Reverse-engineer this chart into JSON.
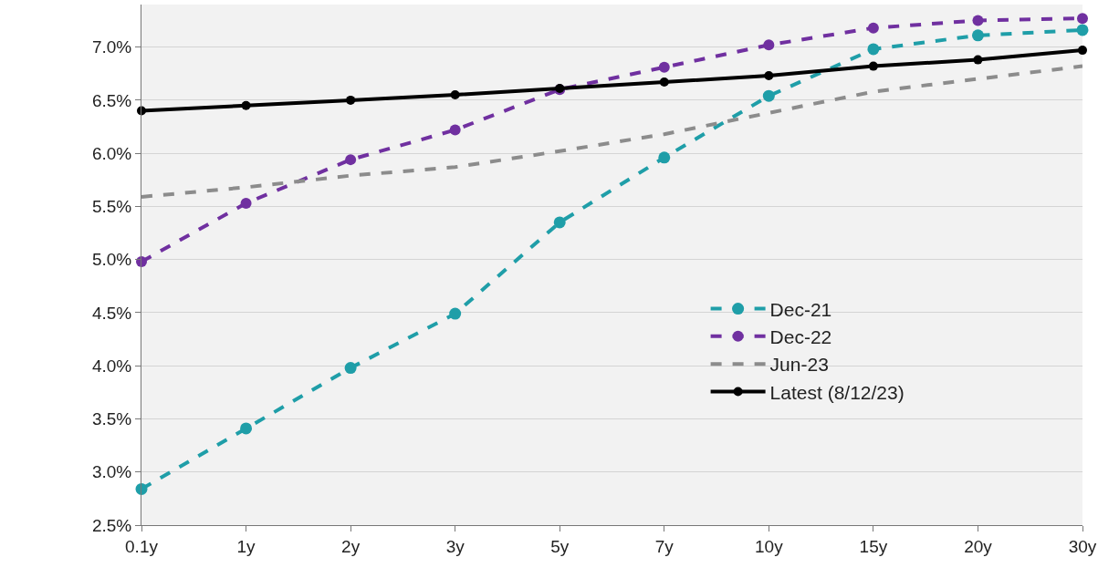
{
  "chart_data": {
    "type": "line",
    "categories": [
      "0.1y",
      "1y",
      "2y",
      "3y",
      "5y",
      "7y",
      "10y",
      "15y",
      "20y",
      "30y"
    ],
    "series": [
      {
        "name": "Dec-21",
        "color": "#1f9ea8",
        "marker": "circle",
        "line_style": "dashed",
        "values": [
          2.84,
          3.41,
          3.98,
          4.49,
          5.35,
          5.96,
          6.54,
          6.98,
          7.11,
          7.16
        ]
      },
      {
        "name": "Dec-22",
        "color": "#7030a0",
        "marker": "circle",
        "line_style": "dashed",
        "values": [
          4.98,
          5.53,
          5.94,
          6.22,
          6.6,
          6.81,
          7.02,
          7.18,
          7.25,
          7.27
        ]
      },
      {
        "name": "Jun-23",
        "color": "#8c8c8c",
        "marker": "none",
        "line_style": "dashed",
        "values": [
          5.59,
          5.68,
          5.79,
          5.87,
          6.02,
          6.18,
          6.38,
          6.58,
          6.7,
          6.82
        ]
      },
      {
        "name": "Latest (8/12/23)",
        "color": "#000000",
        "marker": "circle",
        "line_style": "solid",
        "values": [
          6.4,
          6.45,
          6.5,
          6.55,
          6.61,
          6.67,
          6.73,
          6.82,
          6.88,
          6.97
        ]
      }
    ],
    "ylim": [
      2.5,
      7.4
    ],
    "yticks": [
      {
        "value": 2.5,
        "label": "2.5%"
      },
      {
        "value": 3,
        "label": "3.0%"
      },
      {
        "value": 3.5,
        "label": "3.5%"
      },
      {
        "value": 4,
        "label": "4.0%"
      },
      {
        "value": 4.5,
        "label": "4.5%"
      },
      {
        "value": 5,
        "label": "5.0%"
      },
      {
        "value": 5.5,
        "label": "5.5%"
      },
      {
        "value": 6,
        "label": "6.0%"
      },
      {
        "value": 6.5,
        "label": "6.5%"
      },
      {
        "value": 7,
        "label": "7.0%"
      }
    ],
    "grid": "y",
    "legend": "bottom right"
  }
}
